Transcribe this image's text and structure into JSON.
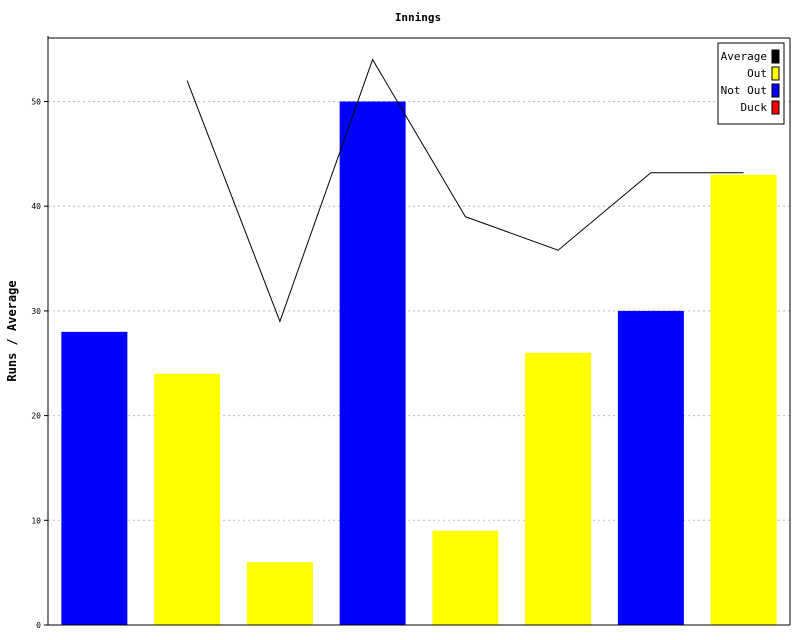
{
  "chart_data": {
    "type": "bar",
    "title": "Innings",
    "ylabel": "Runs / Average",
    "xlabel": "",
    "ylim": [
      0,
      56
    ],
    "yticks": [
      0,
      10,
      20,
      30,
      40,
      50
    ],
    "grid": true,
    "legend_position": "top-right",
    "legend": [
      {
        "label": "Average",
        "color": "#000000"
      },
      {
        "label": "Out",
        "color": "#ffff00"
      },
      {
        "label": "Not Out",
        "color": "#0000ff"
      },
      {
        "label": "Duck",
        "color": "#ff0000"
      }
    ],
    "bars": [
      {
        "value": 28,
        "status": "Not Out"
      },
      {
        "value": 24,
        "status": "Out"
      },
      {
        "value": 6,
        "status": "Out"
      },
      {
        "value": 50,
        "status": "Not Out"
      },
      {
        "value": 9,
        "status": "Out"
      },
      {
        "value": 26,
        "status": "Out"
      },
      {
        "value": 30,
        "status": "Not Out"
      },
      {
        "value": 43,
        "status": "Out"
      }
    ],
    "average_line": [
      null,
      52,
      29,
      54,
      39,
      35.8,
      43.2,
      43.2
    ]
  }
}
